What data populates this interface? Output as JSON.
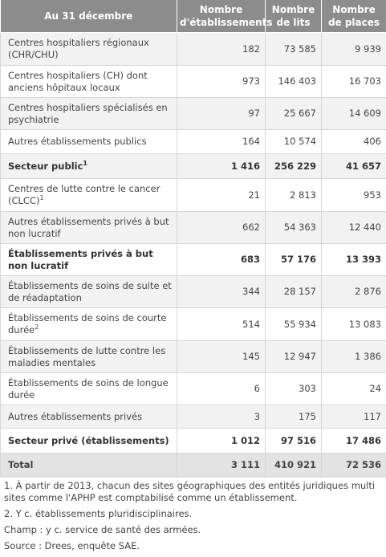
{
  "headers": [
    "Au 31 décembre",
    "Nombre d'établissements",
    "Nombre de lits",
    "Nombre de places"
  ],
  "rows": [
    {
      "label": "Centres hospitaliers régionaux (CHR/CHU)",
      "sup": "",
      "etab": "182",
      "lits": "73 585",
      "places": "9 939"
    },
    {
      "label": "Centres hospitaliers (CH) dont anciens hôpitaux locaux",
      "sup": "",
      "etab": "973",
      "lits": "146 403",
      "places": "16 703"
    },
    {
      "label": "Centres hospitaliers spécialisés en psychiatrie",
      "sup": "",
      "etab": "97",
      "lits": "25 667",
      "places": "14 609"
    },
    {
      "label": "Autres établissements publics",
      "sup": "",
      "etab": "164",
      "lits": "10 574",
      "places": "406"
    },
    {
      "label": "Secteur public",
      "sup": "1",
      "etab": "1 416",
      "lits": "256 229",
      "places": "41 657"
    },
    {
      "label": "Centres de lutte contre le cancer (CLCC)",
      "sup": "1",
      "etab": "21",
      "lits": "2 813",
      "places": "953"
    },
    {
      "label": "Autres établissements privés à but non lucratif",
      "sup": "",
      "etab": "662",
      "lits": "54 363",
      "places": "12 440"
    },
    {
      "label": "Établissements privés à but non lucratif",
      "sup": "",
      "etab": "683",
      "lits": "57 176",
      "places": "13 393"
    },
    {
      "label": "Établissements de soins de suite et de réadaptation",
      "sup": "",
      "etab": "344",
      "lits": "28 157",
      "places": "2 876"
    },
    {
      "label": "Établissements de soins de courte durée",
      "sup": "2",
      "etab": "514",
      "lits": "55 934",
      "places": "13 083"
    },
    {
      "label": "Établissements de lutte contre les maladies mentales",
      "sup": "",
      "etab": "145",
      "lits": "12 947",
      "places": "1 386"
    },
    {
      "label": "Établissements de soins de longue durée",
      "sup": "",
      "etab": "6",
      "lits": "303",
      "places": "24"
    },
    {
      "label": "Autres établissements privés",
      "sup": "",
      "etab": "3",
      "lits": "175",
      "places": "117"
    },
    {
      "label": "Secteur privé (établissements)",
      "sup": "",
      "etab": "1 012",
      "lits": "97 516",
      "places": "17 486"
    },
    {
      "label": "Total",
      "sup": "",
      "etab": "3 111",
      "lits": "410 921",
      "places": "72 536"
    }
  ],
  "notes": {
    "n1": "1. À partir de 2013, chacun des sites géographiques des entités juridiques multi sites comme l'APHP est comptabilisé comme un établissement.",
    "n2": "2. Y c. établissements pluridisciplinaires.",
    "champ": "Champ : y c. service de santé des armées.",
    "source": "Source : Drees, enquête SAE."
  }
}
